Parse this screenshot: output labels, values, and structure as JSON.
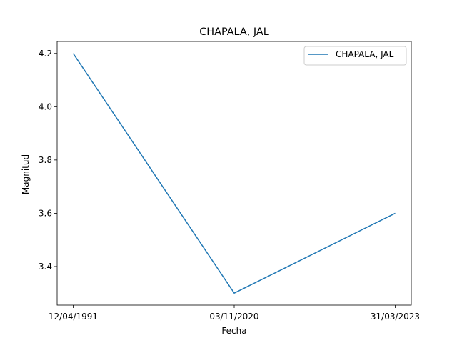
{
  "chart_data": {
    "type": "line",
    "title": "CHAPALA, JAL",
    "xlabel": "Fecha",
    "ylabel": "Magnitud",
    "categories": [
      "12/04/1991",
      "03/11/2020",
      "31/03/2023"
    ],
    "series": [
      {
        "name": "CHAPALA, JAL",
        "values": [
          4.2,
          3.3,
          3.6
        ],
        "color": "#1f77b4"
      }
    ],
    "yticks": [
      "3.4",
      "3.6",
      "3.8",
      "4.0",
      "4.2"
    ],
    "ylim": [
      3.255,
      4.245
    ],
    "grid": false,
    "legend": "top-right"
  }
}
